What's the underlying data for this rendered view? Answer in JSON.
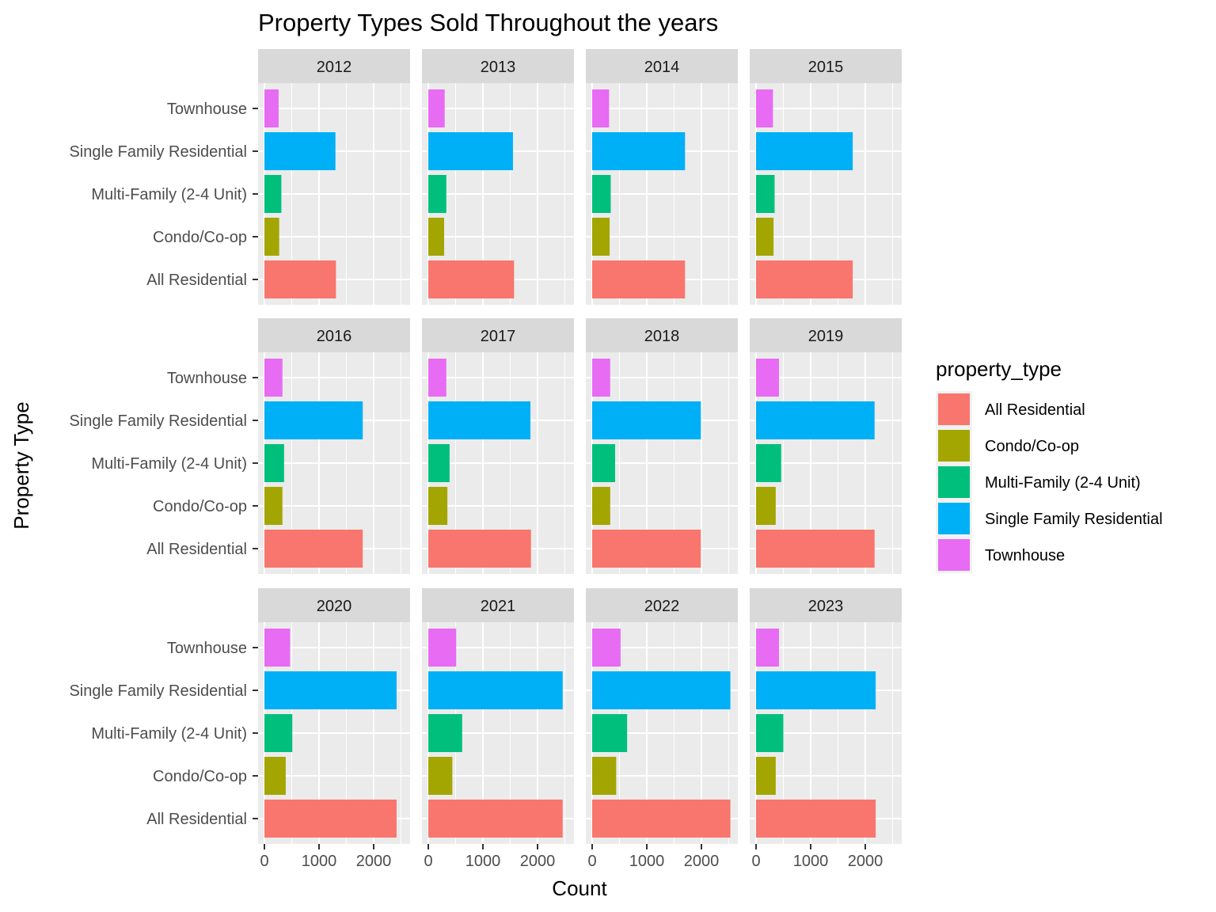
{
  "chart_data": {
    "type": "bar",
    "orientation": "horizontal",
    "facet": "year",
    "title": "Property Types Sold Throughout the years",
    "xlabel": "Count",
    "ylabel": "Property Type",
    "xlim": [
      0,
      2650
    ],
    "xticks": [
      0,
      1000,
      2000
    ],
    "xtick_labels": [
      "0",
      "1000",
      "2000"
    ],
    "grid": true,
    "legend_title": "property_type",
    "legend_position": "right",
    "categories": [
      "All Residential",
      "Condo/Co-op",
      "Multi-Family (2-4 Unit)",
      "Single Family Residential",
      "Townhouse"
    ],
    "colors": {
      "All Residential": "#F8766D",
      "Condo/Co-op": "#A3A500",
      "Multi-Family (2-4 Unit)": "#00BF7D",
      "Single Family Residential": "#00B0F6",
      "Townhouse": "#E76BF3"
    },
    "panels": [
      {
        "year": "2012",
        "values": {
          "All Residential": 1310,
          "Condo/Co-op": 270,
          "Multi-Family (2-4 Unit)": 310,
          "Single Family Residential": 1300,
          "Townhouse": 260
        }
      },
      {
        "year": "2013",
        "values": {
          "All Residential": 1570,
          "Condo/Co-op": 290,
          "Multi-Family (2-4 Unit)": 330,
          "Single Family Residential": 1550,
          "Townhouse": 300
        }
      },
      {
        "year": "2014",
        "values": {
          "All Residential": 1700,
          "Condo/Co-op": 320,
          "Multi-Family (2-4 Unit)": 340,
          "Single Family Residential": 1700,
          "Townhouse": 310
        }
      },
      {
        "year": "2015",
        "values": {
          "All Residential": 1770,
          "Condo/Co-op": 320,
          "Multi-Family (2-4 Unit)": 340,
          "Single Family Residential": 1770,
          "Townhouse": 310
        }
      },
      {
        "year": "2016",
        "values": {
          "All Residential": 1800,
          "Condo/Co-op": 330,
          "Multi-Family (2-4 Unit)": 360,
          "Single Family Residential": 1800,
          "Townhouse": 330
        }
      },
      {
        "year": "2017",
        "values": {
          "All Residential": 1880,
          "Condo/Co-op": 350,
          "Multi-Family (2-4 Unit)": 390,
          "Single Family Residential": 1870,
          "Townhouse": 330
        }
      },
      {
        "year": "2018",
        "values": {
          "All Residential": 1990,
          "Condo/Co-op": 330,
          "Multi-Family (2-4 Unit)": 420,
          "Single Family Residential": 1990,
          "Townhouse": 330
        }
      },
      {
        "year": "2019",
        "values": {
          "All Residential": 2170,
          "Condo/Co-op": 360,
          "Multi-Family (2-4 Unit)": 460,
          "Single Family Residential": 2170,
          "Townhouse": 420
        }
      },
      {
        "year": "2020",
        "values": {
          "All Residential": 2420,
          "Condo/Co-op": 390,
          "Multi-Family (2-4 Unit)": 510,
          "Single Family Residential": 2420,
          "Townhouse": 470
        }
      },
      {
        "year": "2021",
        "values": {
          "All Residential": 2460,
          "Condo/Co-op": 440,
          "Multi-Family (2-4 Unit)": 620,
          "Single Family Residential": 2460,
          "Townhouse": 510
        }
      },
      {
        "year": "2022",
        "values": {
          "All Residential": 2530,
          "Condo/Co-op": 440,
          "Multi-Family (2-4 Unit)": 640,
          "Single Family Residential": 2530,
          "Townhouse": 520
        }
      },
      {
        "year": "2023",
        "values": {
          "All Residential": 2190,
          "Condo/Co-op": 360,
          "Multi-Family (2-4 Unit)": 500,
          "Single Family Residential": 2190,
          "Townhouse": 420
        }
      }
    ]
  }
}
